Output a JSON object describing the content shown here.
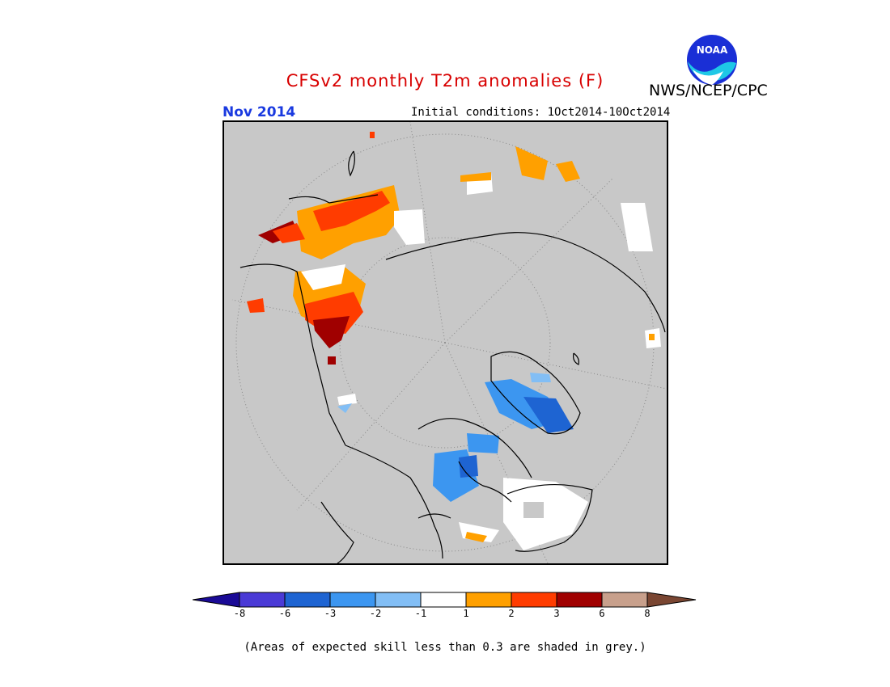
{
  "header": {
    "title": "CFSv2 monthly T2m anomalies (F)",
    "title_color": "#d80000",
    "agency": "NWS/NCEP/CPC",
    "period": "Nov 2014",
    "period_color": "#1a3ae0",
    "initial_conditions": "Initial conditions: 1Oct2014-10Oct2014"
  },
  "logo": {
    "name": "noaa-logo",
    "text": "NOAA"
  },
  "legend": {
    "colors": {
      "lt_neg8": "#1a0a96",
      "neg8_neg6": "#4a3ad6",
      "neg6_neg3": "#1e64d2",
      "neg3_neg2": "#3c96f0",
      "neg2_neg1": "#82bef5",
      "neg1_1": "#ffffff",
      "1_2": "#ffa000",
      "2_3": "#ff3c00",
      "3_6": "#a00000",
      "6_8": "#c8a08c",
      "gt_8": "#7a4632"
    },
    "tick_labels": [
      "-8",
      "-6",
      "-3",
      "-2",
      "-1",
      "1",
      "2",
      "3",
      "6",
      "8"
    ]
  },
  "footnote": "(Areas of expected skill less than 0.3 are shaded in grey.)"
}
